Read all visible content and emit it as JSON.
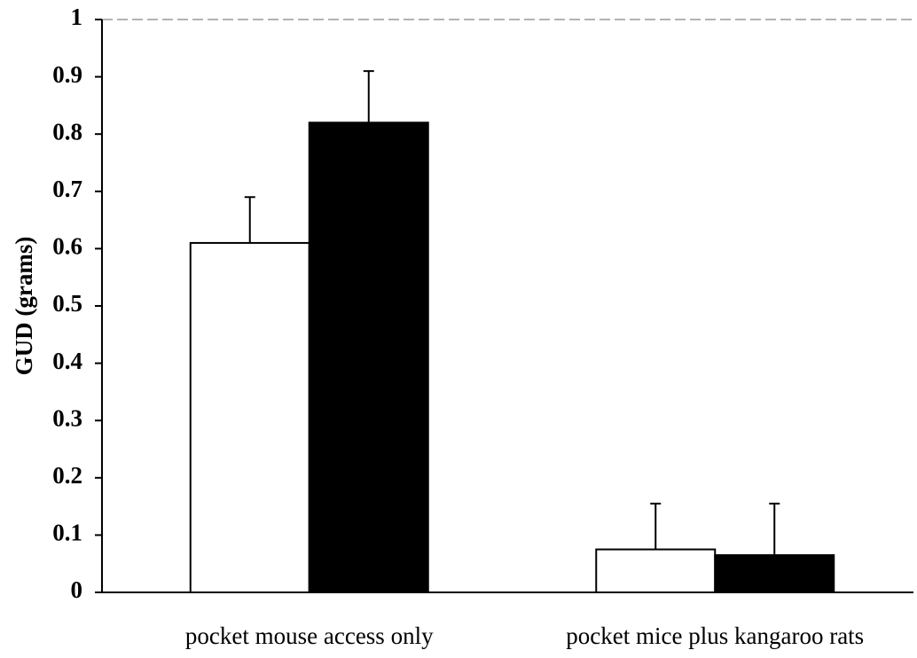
{
  "chart_data": {
    "type": "bar",
    "y_label": "GUD (grams)",
    "categories": [
      "pocket mouse access only",
      "pocket mice plus kangaroo rats"
    ],
    "series": [
      {
        "color": "#ffffff",
        "values": [
          0.61,
          0.075
        ],
        "errors": [
          0.08,
          0.08
        ]
      },
      {
        "color": "#000000",
        "values": [
          0.82,
          0.065
        ],
        "errors": [
          0.09,
          0.09
        ]
      }
    ],
    "ylim": [
      0,
      1
    ],
    "yticks": [
      0,
      0.1,
      0.2,
      0.3,
      0.4,
      0.5,
      0.6,
      0.7,
      0.8,
      0.9,
      1
    ],
    "grid": false
  }
}
